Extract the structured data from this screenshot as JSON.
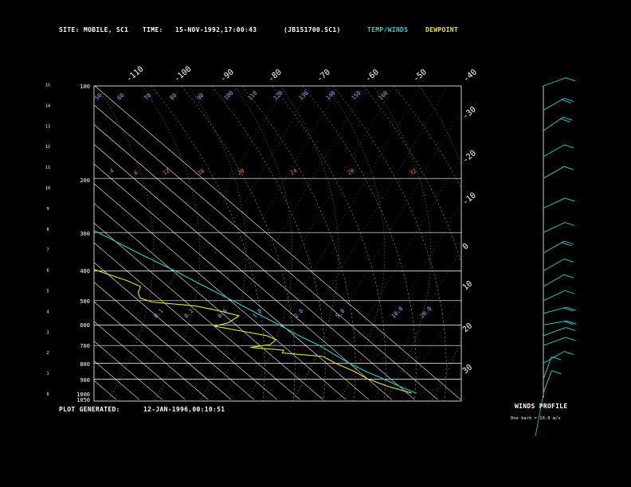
{
  "header": {
    "site_label": "SITE:",
    "site_value": "MOBILE, SC1",
    "time_label": "TIME:",
    "time_value": "15-NOV-1992,17:00:43",
    "file_id": "(JB151700.SC1)",
    "legend_temp": "TEMP/WINDS",
    "legend_dewpoint": "DEWPOINT"
  },
  "footer": {
    "generated_label": "PLOT GENERATED:",
    "generated_value": "12-JAN-1996,00:10:51"
  },
  "wind_panel": {
    "title": "WINDS PROFILE",
    "note": "One barb = 10.0 m/s"
  },
  "colors": {
    "temperature": "#33cccc",
    "dewpoint": "#e8e82a",
    "grid": "#ffffff",
    "dry_adiabat": "#e08a3a",
    "moist_adiabat": "#c8c8c8",
    "mixing_ratio": "#5a8ad8",
    "wind_barbs": "#33cccc",
    "dry_adiabat_label": "#e08a3a",
    "moist_adiabat_label": "#8ab8ff"
  },
  "chart_data": {
    "type": "line",
    "title": "",
    "xlim_temperature_c": [
      -120,
      40
    ],
    "top_temperature_labels": [
      "-110",
      "-100",
      "-90",
      "-80",
      "-70",
      "-60",
      "-50",
      "-40"
    ],
    "right_temperature_labels": [
      "-30",
      "-20",
      "-10",
      "0",
      "10",
      "20",
      "30"
    ],
    "pressure_levels_hpa": [
      200,
      300,
      400,
      500,
      600,
      700,
      800,
      900
    ],
    "pressure_labels": [
      "100",
      "200",
      "300",
      "400",
      "500",
      "600",
      "700",
      "800",
      "900",
      "1000",
      "1050"
    ],
    "height_labels_km": [
      "0",
      "1",
      "2",
      "3",
      "4",
      "5",
      "6",
      "7",
      "8",
      "9",
      "10",
      "11",
      "12",
      "13",
      "14",
      "15"
    ],
    "dry_adiabat_labels": [
      "-4",
      "6",
      "12",
      "16",
      "20",
      "24",
      "28",
      "32"
    ],
    "moist_adiabat_labels": [
      "50",
      "60",
      "70",
      "80",
      "90",
      "100",
      "110",
      "120",
      "130",
      "140",
      "150",
      "160"
    ],
    "mixing_ratio_labels": [
      "0.1",
      "0.2",
      "0.4",
      "1.0",
      "2.0",
      "5.0",
      "10.0",
      "20.0"
    ],
    "series": [
      {
        "name": "TEMP/WINDS",
        "points": [
          {
            "p": 1000,
            "t": 24
          },
          {
            "p": 950,
            "t": 20
          },
          {
            "p": 900,
            "t": 17
          },
          {
            "p": 850,
            "t": 13
          },
          {
            "p": 800,
            "t": 10
          },
          {
            "p": 750,
            "t": 8
          },
          {
            "p": 700,
            "t": 6
          },
          {
            "p": 650,
            "t": 2
          },
          {
            "p": 600,
            "t": -1
          },
          {
            "p": 550,
            "t": -5
          },
          {
            "p": 500,
            "t": -9
          },
          {
            "p": 450,
            "t": -14
          },
          {
            "p": 400,
            "t": -19
          },
          {
            "p": 350,
            "t": -26
          },
          {
            "p": 300,
            "t": -33
          },
          {
            "p": 250,
            "t": -43
          },
          {
            "p": 200,
            "t": -52
          },
          {
            "p": 150,
            "t": -60
          },
          {
            "p": 120,
            "t": -68
          },
          {
            "p": 100,
            "t": -72
          }
        ]
      },
      {
        "name": "DEWPOINT",
        "points": [
          {
            "p": 1000,
            "t": 22
          },
          {
            "p": 950,
            "t": 15
          },
          {
            "p": 900,
            "t": 10
          },
          {
            "p": 850,
            "t": 8
          },
          {
            "p": 800,
            "t": 4
          },
          {
            "p": 760,
            "t": 2
          },
          {
            "p": 740,
            "t": -14
          },
          {
            "p": 725,
            "t": -12
          },
          {
            "p": 710,
            "t": -25
          },
          {
            "p": 695,
            "t": -15
          },
          {
            "p": 670,
            "t": -10
          },
          {
            "p": 650,
            "t": -12
          },
          {
            "p": 630,
            "t": -20
          },
          {
            "p": 605,
            "t": -30
          },
          {
            "p": 590,
            "t": -22
          },
          {
            "p": 560,
            "t": -14
          },
          {
            "p": 540,
            "t": -20
          },
          {
            "p": 520,
            "t": -28
          },
          {
            "p": 505,
            "t": -45
          },
          {
            "p": 490,
            "t": -48
          },
          {
            "p": 470,
            "t": -46
          },
          {
            "p": 450,
            "t": -42
          },
          {
            "p": 430,
            "t": -45
          },
          {
            "p": 410,
            "t": -50
          },
          {
            "p": 390,
            "t": -55
          },
          {
            "p": 370,
            "t": -52
          },
          {
            "p": 350,
            "t": -58
          },
          {
            "p": 330,
            "t": -56
          },
          {
            "p": 310,
            "t": -62
          },
          {
            "p": 295,
            "t": -60
          },
          {
            "p": 280,
            "t": -65
          },
          {
            "p": 260,
            "t": -61
          },
          {
            "p": 240,
            "t": -68
          },
          {
            "p": 220,
            "t": -74
          },
          {
            "p": 200,
            "t": -80
          },
          {
            "p": 180,
            "t": -85
          },
          {
            "p": 160,
            "t": -89
          },
          {
            "p": 140,
            "t": -93
          },
          {
            "p": 120,
            "t": -96
          },
          {
            "p": 100,
            "t": -96
          }
        ]
      }
    ],
    "winds": [
      {
        "p": 1000,
        "dir": 200,
        "spd": 8
      },
      {
        "p": 900,
        "dir": 200,
        "spd": 7
      },
      {
        "p": 800,
        "dir": 240,
        "spd": 10
      },
      {
        "p": 700,
        "dir": 250,
        "spd": 12
      },
      {
        "p": 650,
        "dir": 250,
        "spd": 14
      },
      {
        "p": 600,
        "dir": 260,
        "spd": 18
      },
      {
        "p": 550,
        "dir": 255,
        "spd": 15
      },
      {
        "p": 500,
        "dir": 245,
        "spd": 14
      },
      {
        "p": 450,
        "dir": 240,
        "spd": 14
      },
      {
        "p": 400,
        "dir": 240,
        "spd": 13
      },
      {
        "p": 350,
        "dir": 240,
        "spd": 15
      },
      {
        "p": 300,
        "dir": 245,
        "spd": 14
      },
      {
        "p": 250,
        "dir": 245,
        "spd": 13
      },
      {
        "p": 200,
        "dir": 240,
        "spd": 14
      },
      {
        "p": 170,
        "dir": 240,
        "spd": 13
      },
      {
        "p": 140,
        "dir": 235,
        "spd": 18
      },
      {
        "p": 120,
        "dir": 240,
        "spd": 15
      },
      {
        "p": 100,
        "dir": 250,
        "spd": 12
      }
    ]
  }
}
